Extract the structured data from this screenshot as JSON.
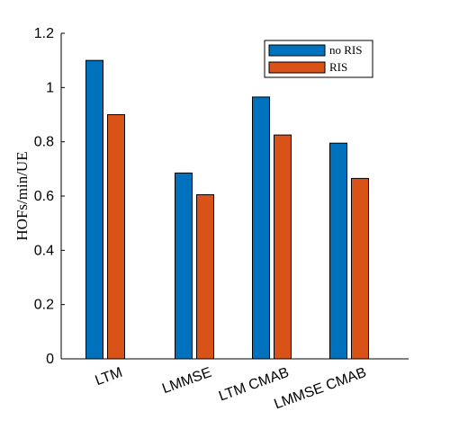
{
  "chart_data": {
    "type": "bar",
    "categories": [
      "LTM",
      "LMMSE",
      "LTM CMAB",
      "LMMSE CMAB"
    ],
    "series": [
      {
        "name": "no RIS",
        "values": [
          1.1,
          0.685,
          0.965,
          0.795
        ],
        "color": "#0072BD"
      },
      {
        "name": "RIS",
        "values": [
          0.9,
          0.605,
          0.825,
          0.665
        ],
        "color": "#D95319"
      }
    ],
    "title": "",
    "xlabel": "",
    "ylabel": "HOFs/min/UE",
    "ylim": [
      0,
      1.2
    ],
    "yticks": [
      0,
      0.2,
      0.4,
      0.6,
      0.8,
      1,
      1.2
    ],
    "ytick_labels": [
      "0",
      "0.2",
      "0.4",
      "0.6",
      "0.8",
      "1",
      "1.2"
    ],
    "grid": false,
    "legend_position": "top-right",
    "xtick_rotation_deg": 20
  }
}
